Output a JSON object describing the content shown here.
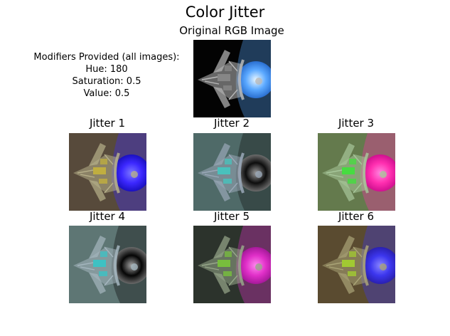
{
  "figure": {
    "title": "Color Jitter",
    "original": {
      "title": "Original RGB Image",
      "colors": {
        "bg": "#030303",
        "glow": "#5aa8ff",
        "glowCore": "#e8f6ff",
        "hull": "#b9b9b9",
        "accent": "#8a8a8a",
        "rim": "#2a6fd0"
      }
    },
    "modifiers": {
      "heading": "Modifiers Provided (all images):",
      "hue": "Hue: 180",
      "saturation": "Saturation: 0.5",
      "value": "Value: 0.5"
    },
    "jitters": [
      {
        "label": "Jitter 1",
        "colors": {
          "bg": "#574a3b",
          "glow": "#3c28ff",
          "glowCore": "#7d79ff",
          "hull": "#b7b08a",
          "accent": "#c5b23c",
          "rim": "#1a10c0"
        }
      },
      {
        "label": "Jitter 2",
        "colors": {
          "bg": "#4f6a68",
          "glow": "#0d0d0d",
          "glowCore": "#9a9a9a",
          "hull": "#9aa8b8",
          "accent": "#44c7c0",
          "rim": "#6c6c6c"
        }
      },
      {
        "label": "Jitter 3",
        "colors": {
          "bg": "#647a4d",
          "glow": "#ff2fb0",
          "glowCore": "#ff86e0",
          "hull": "#a7c69a",
          "accent": "#3fe23b",
          "rim": "#d01090"
        }
      },
      {
        "label": "Jitter 4",
        "colors": {
          "bg": "#5e7674",
          "glow": "#050505",
          "glowCore": "#a6a6a6",
          "hull": "#a5b6bf",
          "accent": "#36c5c8",
          "rim": "#6a6a6a"
        }
      },
      {
        "label": "Jitter 5",
        "colors": {
          "bg": "#2c332c",
          "glow": "#e02fc8",
          "glowCore": "#ff88ee",
          "hull": "#97a78a",
          "accent": "#7ac53a",
          "rim": "#a6199a"
        }
      },
      {
        "label": "Jitter 6",
        "colors": {
          "bg": "#5a4b30",
          "glow": "#3c36ee",
          "glowCore": "#8a86ff",
          "hull": "#aaa477",
          "accent": "#a4d22f",
          "rim": "#2a20b0"
        }
      }
    ]
  }
}
